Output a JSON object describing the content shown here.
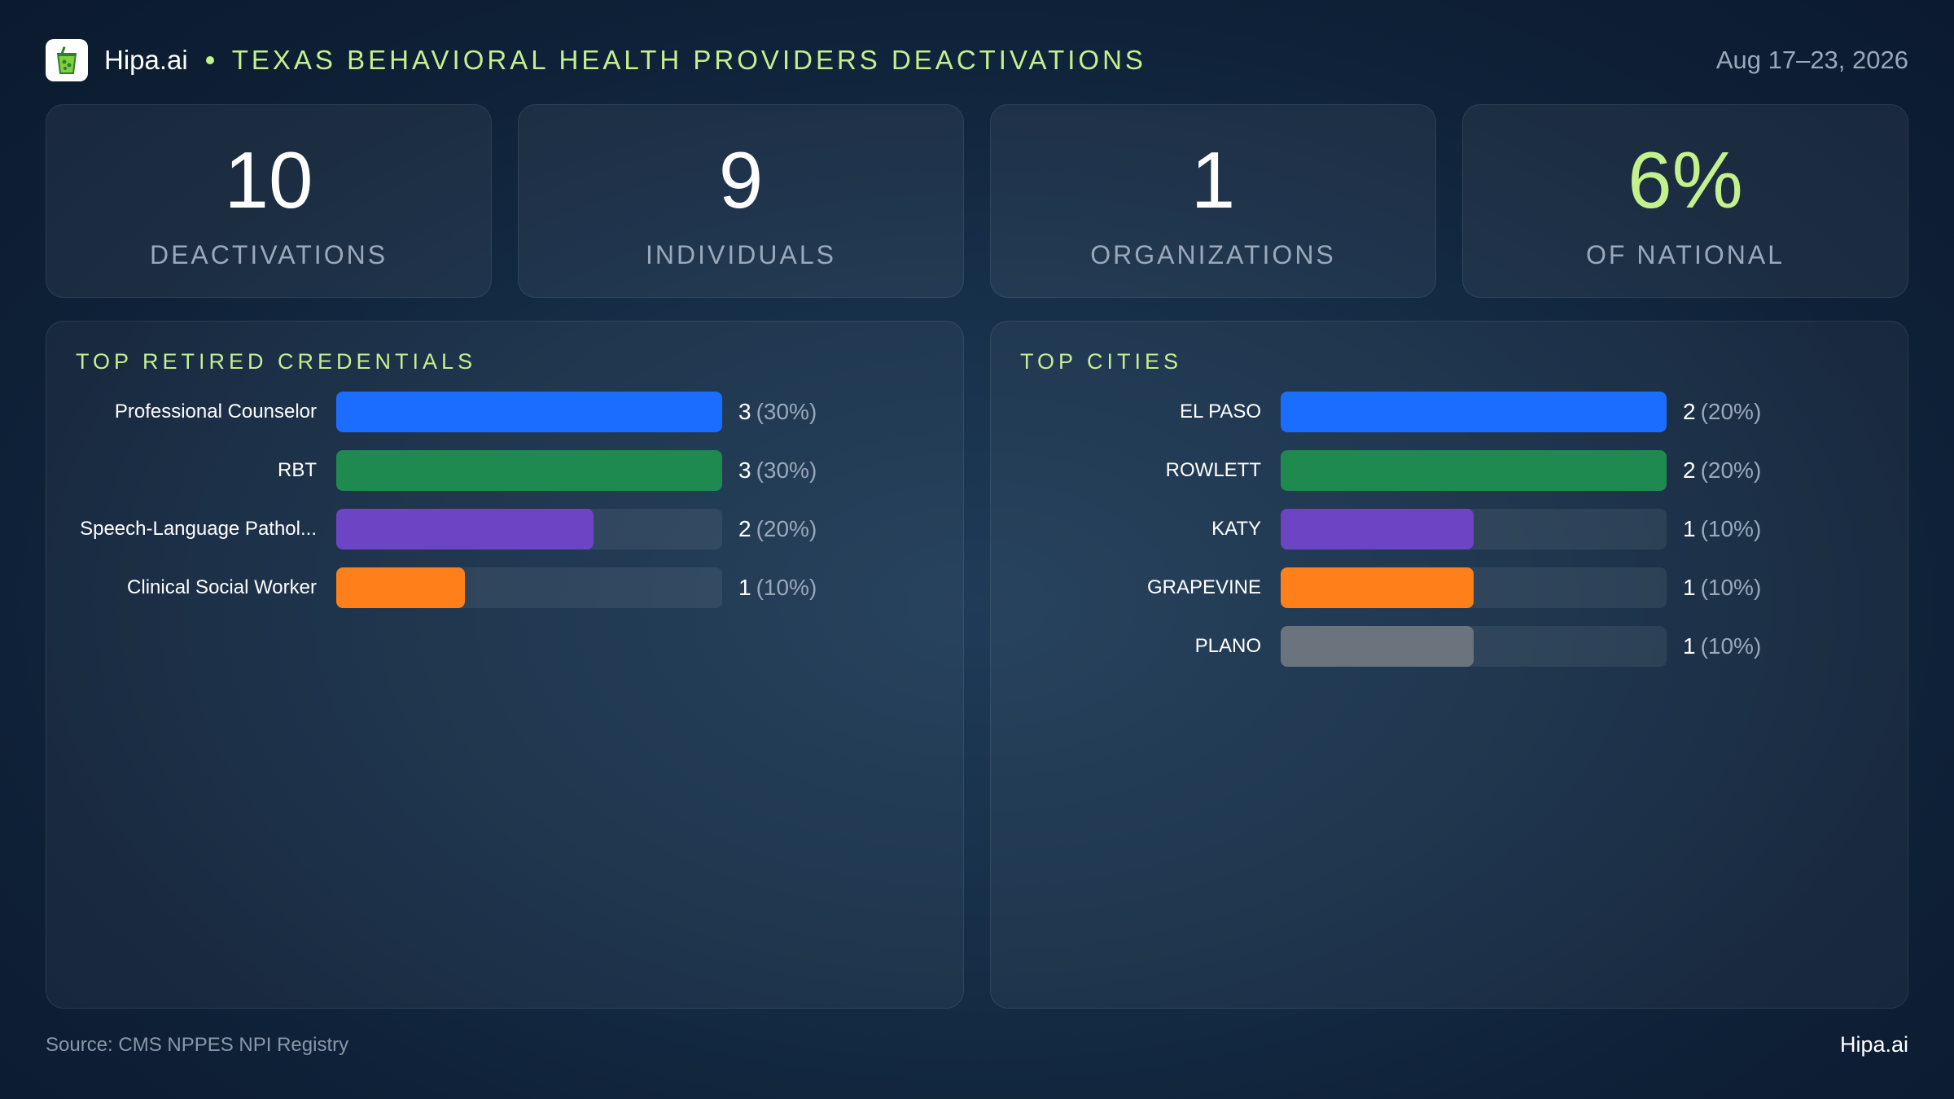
{
  "header": {
    "brand": "Hipa.ai",
    "title": "TEXAS BEHAVIORAL HEALTH PROVIDERS DEACTIVATIONS",
    "date": "Aug 17–23, 2026",
    "logo_icon": "drink-cup-icon"
  },
  "kpis": [
    {
      "value": "10",
      "label": "DEACTIVATIONS"
    },
    {
      "value": "9",
      "label": "INDIVIDUALS"
    },
    {
      "value": "1",
      "label": "ORGANIZATIONS"
    },
    {
      "value": "6%",
      "label": "OF NATIONAL"
    }
  ],
  "colors": {
    "accent": "#c5f08e",
    "blue": "#1a6dff",
    "green": "#1e8a4f",
    "purple": "#6d44c4",
    "orange": "#ff7f1a",
    "gray": "#6b737d"
  },
  "chart_data": [
    {
      "type": "bar",
      "orientation": "horizontal",
      "title": "TOP RETIRED CREDENTIALS",
      "categories": [
        "Professional Counselor",
        "RBT",
        "Speech-Language Pathol...",
        "Clinical Social Worker"
      ],
      "values": [
        3,
        3,
        2,
        1
      ],
      "value_labels": [
        "3",
        "3",
        "2",
        "1"
      ],
      "percent_labels": [
        "(30%)",
        "(30%)",
        "(20%)",
        "(10%)"
      ],
      "colors": [
        "#1a6dff",
        "#1e8a4f",
        "#6d44c4",
        "#ff7f1a"
      ],
      "xlim": [
        0,
        3
      ]
    },
    {
      "type": "bar",
      "orientation": "horizontal",
      "title": "TOP CITIES",
      "categories": [
        "EL PASO",
        "ROWLETT",
        "KATY",
        "GRAPEVINE",
        "PLANO"
      ],
      "values": [
        2,
        2,
        1,
        1,
        1
      ],
      "value_labels": [
        "2",
        "2",
        "1",
        "1",
        "1"
      ],
      "percent_labels": [
        "(20%)",
        "(20%)",
        "(10%)",
        "(10%)",
        "(10%)"
      ],
      "colors": [
        "#1a6dff",
        "#1e8a4f",
        "#6d44c4",
        "#ff7f1a",
        "#6b737d"
      ],
      "xlim": [
        0,
        2
      ]
    }
  ],
  "footer": {
    "source": "Source: CMS NPPES NPI Registry",
    "brand": "Hipa.ai"
  }
}
